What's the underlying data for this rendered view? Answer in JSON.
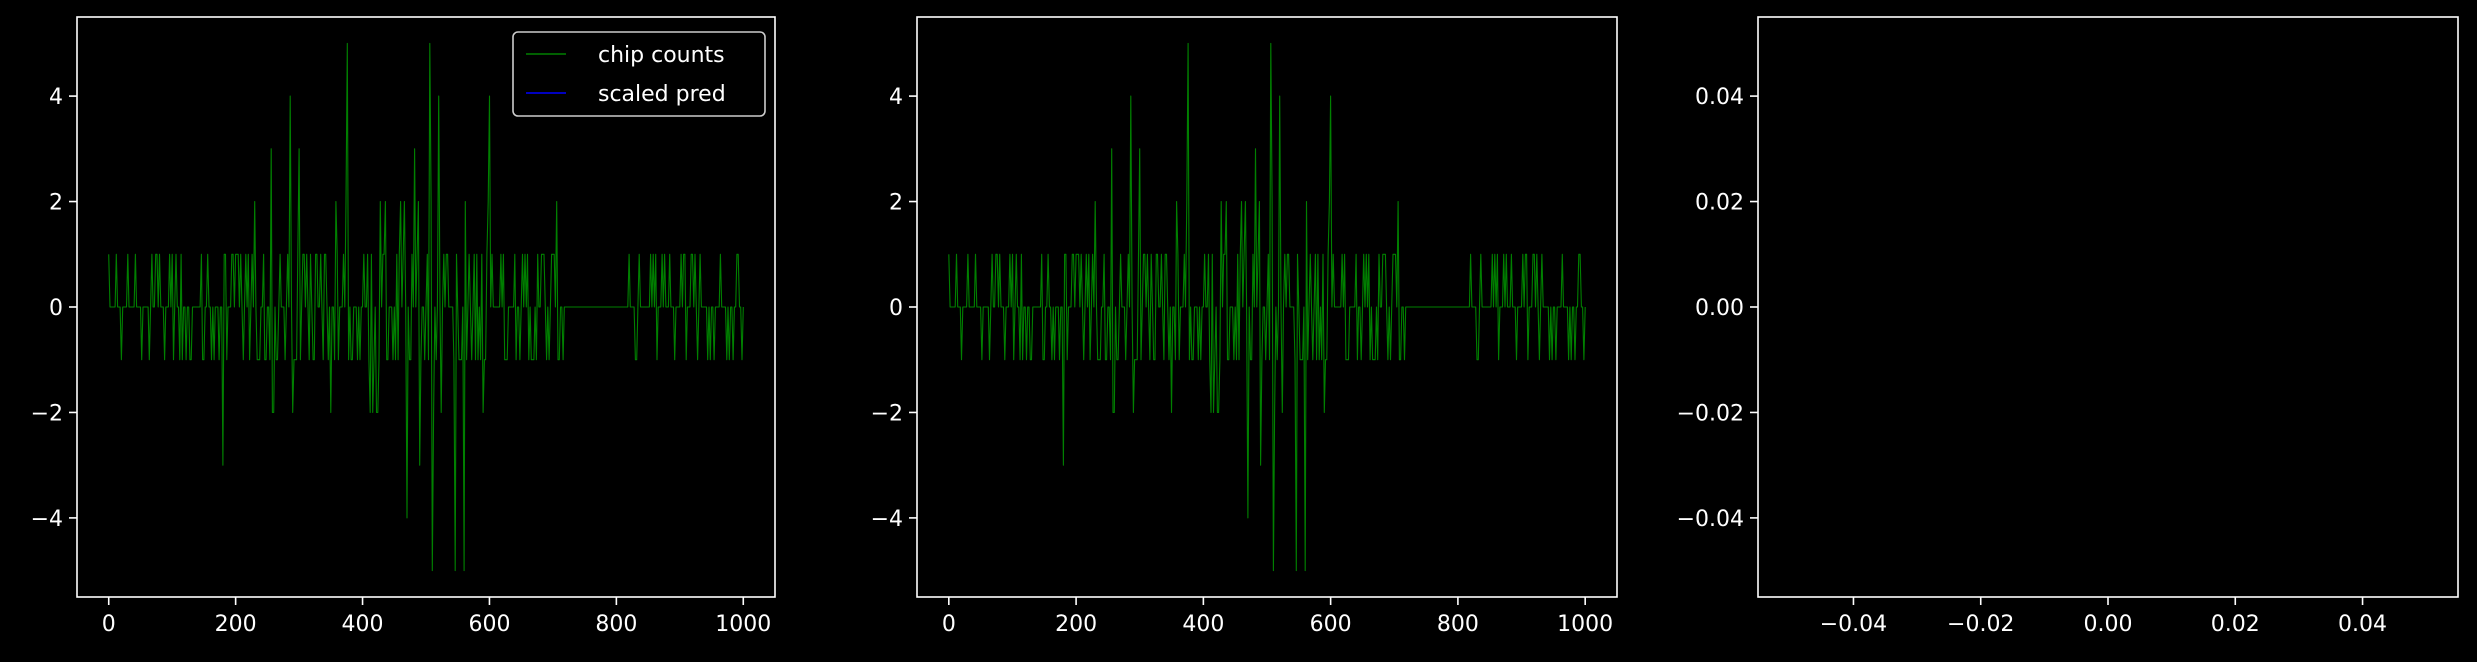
{
  "figure": {
    "background": "#000000",
    "foreground": "#ffffff"
  },
  "chart_data": [
    {
      "type": "line",
      "panel": "left",
      "title": "",
      "xlabel": "",
      "ylabel": "",
      "xlim": [
        -50,
        1050
      ],
      "ylim": [
        -5.5,
        5.5
      ],
      "xticks": [
        0,
        200,
        400,
        600,
        800,
        1000
      ],
      "xtick_labels": [
        "0",
        "200",
        "400",
        "600",
        "800",
        "1000"
      ],
      "yticks": [
        -4,
        -2,
        0,
        2,
        4
      ],
      "ytick_labels": [
        "−4",
        "−2",
        "0",
        "2",
        "4"
      ],
      "grid": false,
      "legend": {
        "placement": "top-right",
        "entries": [
          {
            "label": "chip counts",
            "color": "#008000"
          },
          {
            "label": "scaled pred",
            "color": "#0000ff"
          }
        ]
      },
      "series": [
        {
          "name": "chip counts",
          "color": "#008000",
          "x_range": [
            0,
            1000
          ],
          "y_range": [
            -5,
            5
          ],
          "style": "dense integer-valued noise, wider amplitude near x 250–600"
        },
        {
          "name": "scaled pred",
          "color": "#0000ff",
          "values": []
        }
      ]
    },
    {
      "type": "line",
      "panel": "middle",
      "title": "",
      "xlabel": "",
      "ylabel": "",
      "xlim": [
        -50,
        1050
      ],
      "ylim": [
        -5.5,
        5.5
      ],
      "xticks": [
        0,
        200,
        400,
        600,
        800,
        1000
      ],
      "xtick_labels": [
        "0",
        "200",
        "400",
        "600",
        "800",
        "1000"
      ],
      "yticks": [
        -4,
        -2,
        0,
        2,
        4
      ],
      "ytick_labels": [
        "−4",
        "−2",
        "0",
        "2",
        "4"
      ],
      "grid": false,
      "series": [
        {
          "color": "#008000",
          "x_range": [
            0,
            1000
          ],
          "y_range": [
            -5,
            5
          ],
          "style": "same trace as left panel"
        }
      ]
    },
    {
      "type": "line",
      "panel": "right",
      "title": "",
      "xlabel": "",
      "ylabel": "",
      "xlim": [
        -0.055,
        0.055
      ],
      "ylim": [
        -0.055,
        0.055
      ],
      "xticks": [
        -0.04,
        -0.02,
        0,
        0.02,
        0.04
      ],
      "xtick_labels": [
        "−0.04",
        "−0.02",
        "0.00",
        "0.02",
        "0.04"
      ],
      "yticks": [
        -0.04,
        -0.02,
        0,
        0.02,
        0.04
      ],
      "ytick_labels": [
        "−0.04",
        "−0.02",
        "0.00",
        "0.02",
        "0.04"
      ],
      "grid": false,
      "series": []
    }
  ]
}
